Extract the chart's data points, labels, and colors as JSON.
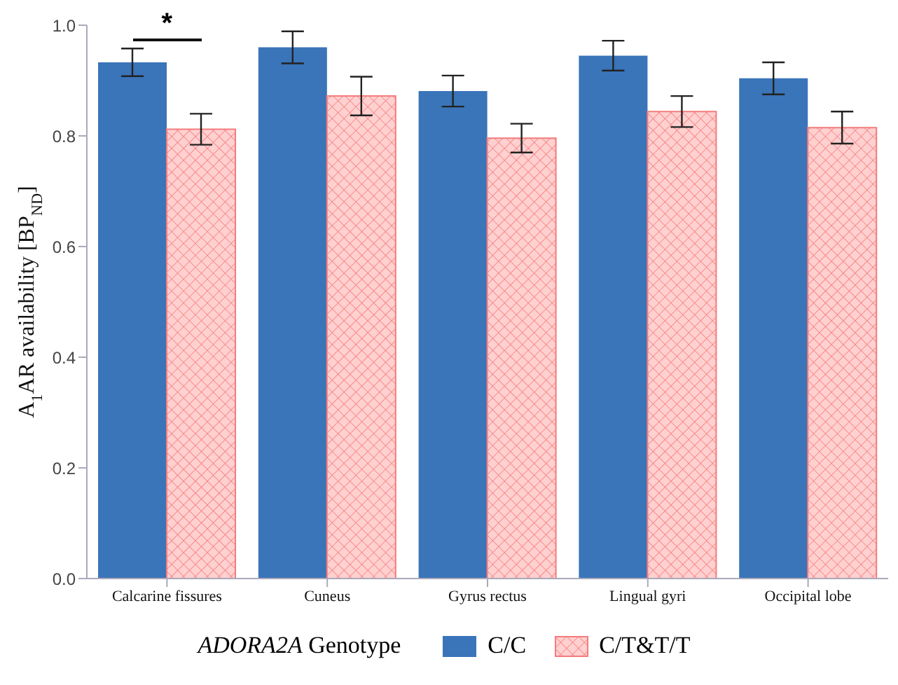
{
  "chart_data": {
    "type": "bar",
    "ylabel": "A$_{1}$AR availability [BP$_{ND}$]",
    "legend_title": "ADORA2A Genotype",
    "categories": [
      "Calcarine fissures",
      "Cuneus",
      "Gyrus rectus",
      "Lingual gyri",
      "Occipital lobe"
    ],
    "series": [
      {
        "name": "C/C",
        "color": "#3a74b9",
        "values": [
          0.933,
          0.96,
          0.881,
          0.945,
          0.904
        ],
        "errors": [
          0.025,
          0.029,
          0.028,
          0.027,
          0.029
        ]
      },
      {
        "name": "C/T&T/T",
        "color": "#f47c7c",
        "values": [
          0.812,
          0.872,
          0.796,
          0.844,
          0.815
        ],
        "errors": [
          0.028,
          0.035,
          0.026,
          0.028,
          0.029
        ]
      }
    ],
    "ylim": [
      0,
      1.0
    ],
    "yticks": [
      {
        "value": 0,
        "label": "0.0"
      },
      {
        "value": 0.2,
        "label": "0.2"
      },
      {
        "value": 0.4,
        "label": "0.4"
      },
      {
        "value": 0.6,
        "label": "0.6"
      },
      {
        "value": 0.8,
        "label": "0.8"
      },
      {
        "value": 1.0,
        "label": "1.0"
      }
    ],
    "annotations": [
      "*"
    ],
    "grid": false,
    "legend": "bottom"
  }
}
